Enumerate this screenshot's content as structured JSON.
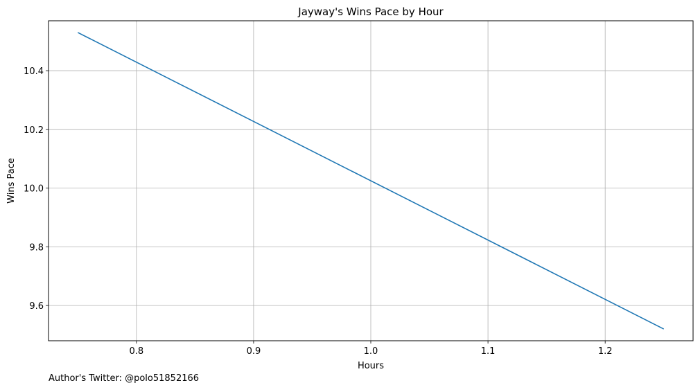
{
  "chart_data": {
    "type": "line",
    "title": "Jayway's Wins Pace by Hour",
    "xlabel": "Hours",
    "ylabel": "Wins Pace",
    "xlim": [
      0.725,
      1.275
    ],
    "ylim": [
      9.48,
      10.57
    ],
    "xticks": [
      "0.8",
      "0.9",
      "1.0",
      "1.1",
      "1.2"
    ],
    "yticks": [
      "9.6",
      "9.8",
      "10.0",
      "10.2",
      "10.4"
    ],
    "grid": true,
    "series": [
      {
        "x": [
          0.75,
          1.25
        ],
        "y": [
          10.53,
          9.52
        ],
        "color": "#1f77b4"
      }
    ]
  },
  "footer": {
    "text": "Author's Twitter: @polo51852166"
  }
}
